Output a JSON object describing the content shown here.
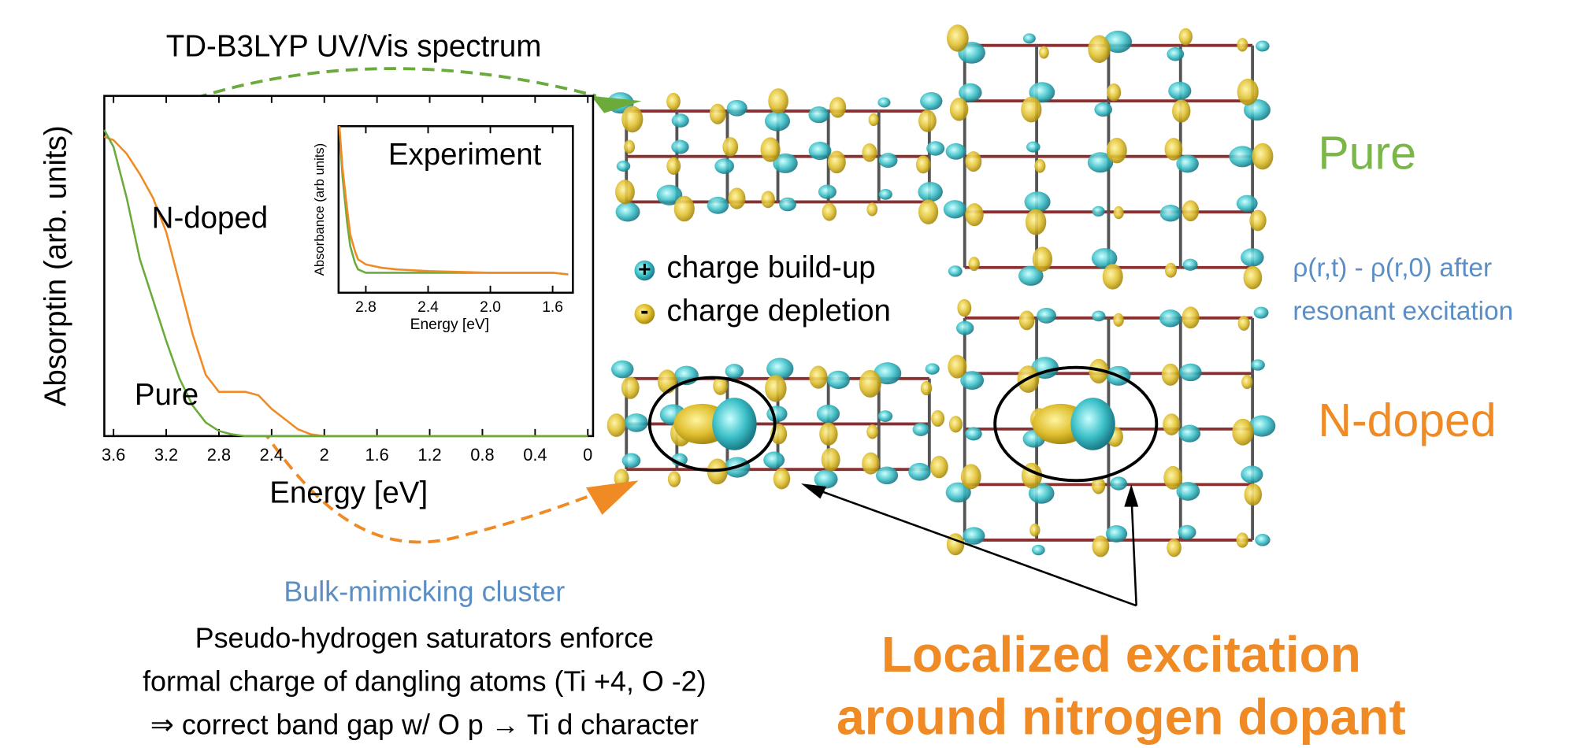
{
  "chart_data": [
    {
      "type": "line",
      "title": "TD-B3LYP UV/Vis spectrum",
      "x_label": "Energy [eV]",
      "y_label": "Absorptin (arb. units)",
      "x": [
        3.67,
        3.6,
        3.5,
        3.4,
        3.3,
        3.2,
        3.1,
        3.0,
        2.9,
        2.8,
        2.7,
        2.6,
        2.5,
        2.4,
        2.3,
        2.2,
        2.1,
        2.0,
        1.6,
        1.2,
        0.8,
        0.4,
        0
      ],
      "series": [
        {
          "name": "N-doped",
          "color": "#f08a24",
          "values": [
            0.88,
            0.87,
            0.83,
            0.77,
            0.7,
            0.6,
            0.45,
            0.3,
            0.18,
            0.13,
            0.13,
            0.13,
            0.12,
            0.08,
            0.05,
            0.02,
            0.005,
            0,
            0,
            0,
            0,
            0,
            0
          ]
        },
        {
          "name": "Pure",
          "color": "#6aab3c",
          "values": [
            0.9,
            0.85,
            0.7,
            0.52,
            0.4,
            0.28,
            0.17,
            0.09,
            0.04,
            0.015,
            0.005,
            0,
            0,
            0,
            0,
            0,
            0,
            0,
            0,
            0,
            0,
            0,
            0
          ]
        }
      ],
      "xlim": [
        3.67,
        -0.04
      ],
      "ylim": [
        0,
        1
      ],
      "xticks": [
        3.6,
        3.2,
        2.8,
        2.4,
        2,
        1.6,
        1.2,
        0.8,
        0.4,
        0
      ]
    },
    {
      "type": "line",
      "title": "Experiment",
      "x_label": "Energy [eV]",
      "y_label": "Absorbance (arb units)",
      "x": [
        2.97,
        2.95,
        2.92,
        2.9,
        2.87,
        2.85,
        2.8,
        2.7,
        2.6,
        2.4,
        2.0,
        1.6,
        1.5
      ],
      "series": [
        {
          "color": "#6aab3c",
          "values": [
            1.0,
            0.7,
            0.42,
            0.28,
            0.18,
            0.14,
            0.12,
            0.12,
            0.12,
            0.12,
            0.12,
            0.12,
            0.11
          ]
        },
        {
          "color": "#f08a24",
          "values": [
            1.0,
            0.75,
            0.5,
            0.35,
            0.25,
            0.2,
            0.17,
            0.15,
            0.14,
            0.13,
            0.12,
            0.12,
            0.11
          ]
        }
      ],
      "xlim": [
        2.975,
        1.47
      ],
      "ylim": [
        0,
        1
      ],
      "xticks": [
        2.8,
        2.4,
        {
          "value": 2,
          "label": "2.0"
        },
        1.6
      ]
    }
  ],
  "slide": {
    "legend": {
      "plus": "+",
      "plus_text": "charge build-up",
      "minus": "-",
      "minus_text": "charge depletion"
    },
    "right_labels": {
      "pure": "Pure",
      "density_1": "ρ(r,t) - ρ(r,0) after",
      "density_2": "resonant excitation",
      "ndoped": "N-doped"
    },
    "bottom_left": {
      "heading": "Bulk-mimicking cluster",
      "lines": [
        "Pseudo-hydrogen saturators enforce",
        "formal charge of dangling atoms (Ti +4, O -2)",
        "⇒ correct band gap w/ O p → Ti d character"
      ]
    },
    "bottom_right": [
      "Localized excitation",
      "around nitrogen dopant"
    ]
  }
}
